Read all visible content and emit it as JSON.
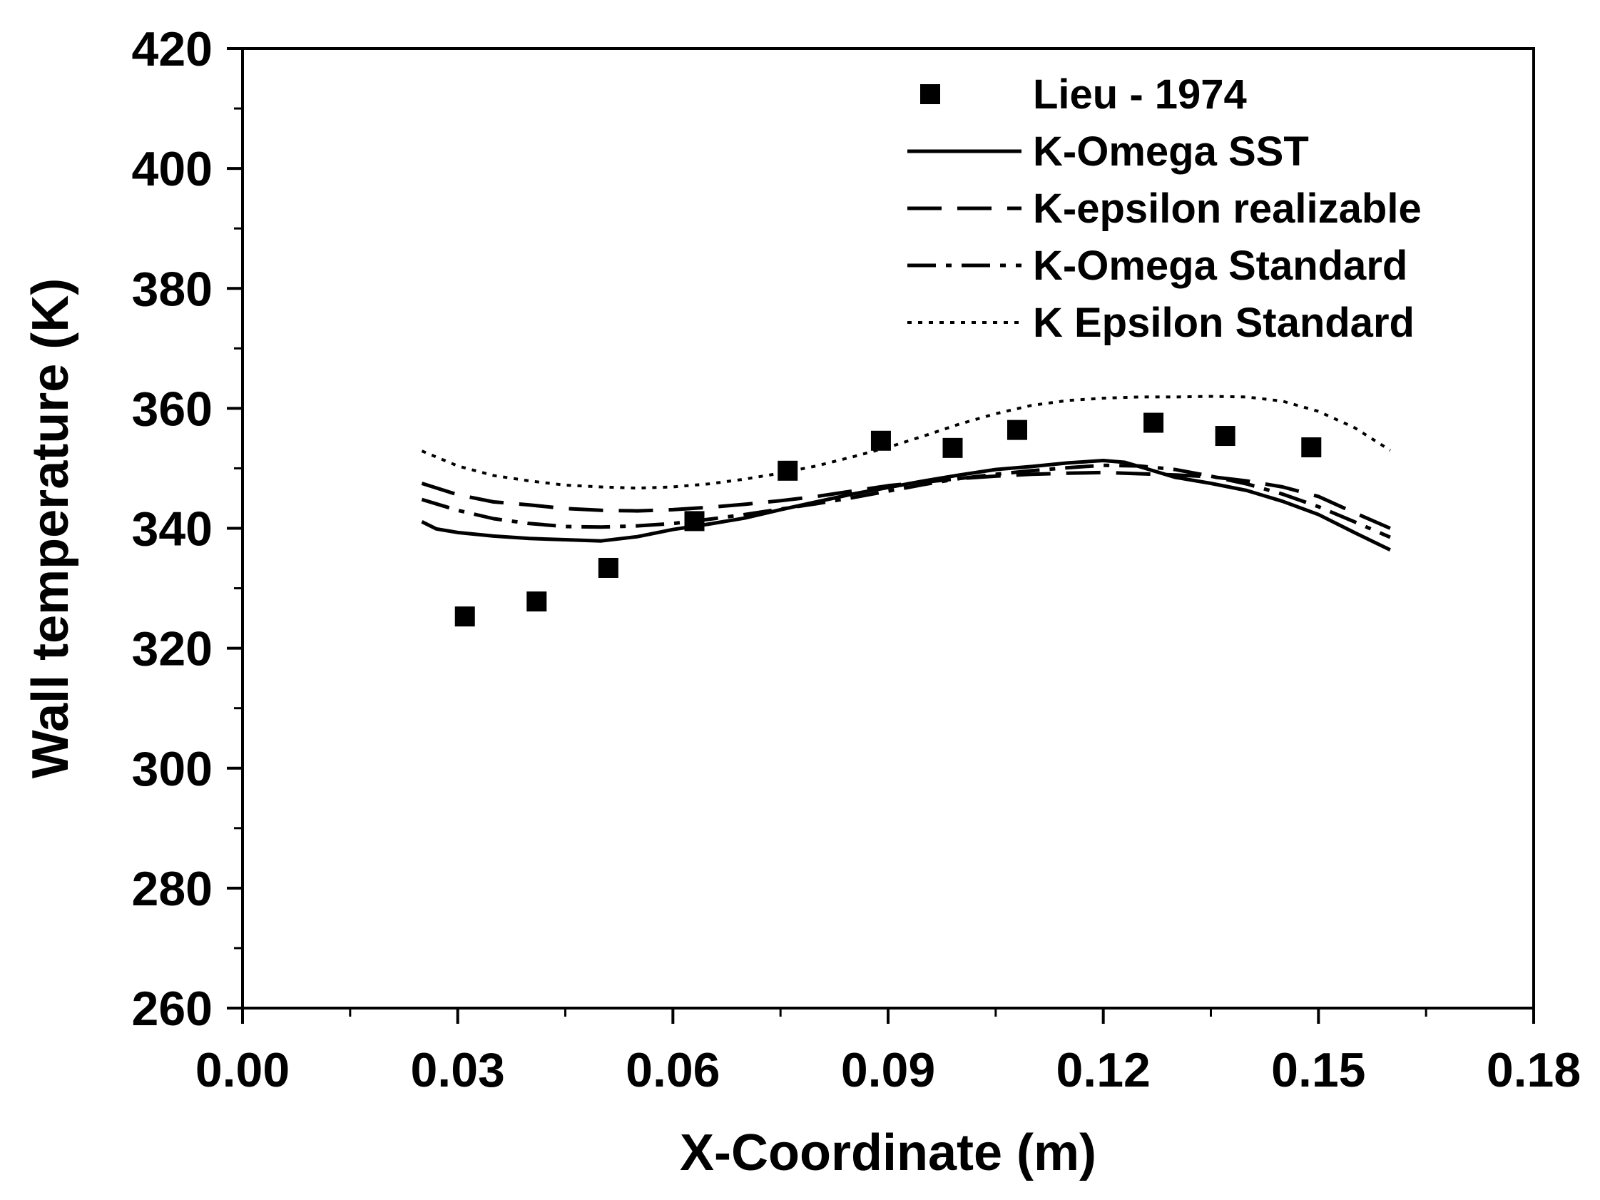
{
  "chart_data": {
    "type": "line",
    "title": "",
    "xlabel": "X-Coordinate (m)",
    "ylabel": "Wall temperature (K)",
    "xlim": [
      0.0,
      0.18
    ],
    "ylim": [
      260,
      420
    ],
    "xticks": [
      0.0,
      0.03,
      0.06,
      0.09,
      0.12,
      0.15,
      0.18
    ],
    "xtick_labels": [
      "0.00",
      "0.03",
      "0.06",
      "0.09",
      "0.12",
      "0.15",
      "0.18"
    ],
    "yticks": [
      260,
      280,
      300,
      320,
      340,
      360,
      380,
      400,
      420
    ],
    "ytick_labels": [
      "260",
      "280",
      "300",
      "320",
      "340",
      "360",
      "380",
      "400",
      "420"
    ],
    "grid": false,
    "legend_position": "top-right",
    "series": [
      {
        "name": "Lieu - 1974",
        "style": "square-markers",
        "x": [
          0.031,
          0.041,
          0.051,
          0.063,
          0.076,
          0.089,
          0.099,
          0.108,
          0.127,
          0.137,
          0.149
        ],
        "y": [
          325.3,
          327.8,
          333.4,
          341.2,
          349.6,
          354.6,
          353.4,
          356.4,
          357.6,
          355.4,
          353.5
        ]
      },
      {
        "name": "K-Omega SST",
        "style": "solid",
        "x": [
          0.025,
          0.027,
          0.03,
          0.035,
          0.04,
          0.045,
          0.05,
          0.055,
          0.06,
          0.065,
          0.07,
          0.075,
          0.08,
          0.085,
          0.09,
          0.095,
          0.1,
          0.105,
          0.11,
          0.115,
          0.12,
          0.123,
          0.125,
          0.13,
          0.135,
          0.14,
          0.145,
          0.15,
          0.155,
          0.16
        ],
        "y": [
          341.1,
          339.9,
          339.3,
          338.7,
          338.3,
          338.1,
          337.9,
          338.6,
          339.8,
          340.7,
          341.7,
          343.1,
          344.4,
          345.7,
          346.8,
          347.9,
          348.9,
          349.8,
          350.3,
          350.9,
          351.3,
          351.0,
          350.3,
          348.5,
          347.5,
          346.3,
          344.5,
          342.3,
          339.3,
          336.4
        ]
      },
      {
        "name": "K-epsilon realizable",
        "style": "long-dash",
        "x": [
          0.025,
          0.03,
          0.035,
          0.04,
          0.045,
          0.05,
          0.055,
          0.06,
          0.065,
          0.07,
          0.075,
          0.08,
          0.085,
          0.09,
          0.095,
          0.1,
          0.105,
          0.11,
          0.115,
          0.12,
          0.125,
          0.13,
          0.135,
          0.14,
          0.145,
          0.15,
          0.155,
          0.16
        ],
        "y": [
          347.5,
          345.6,
          344.4,
          343.9,
          343.3,
          343.0,
          342.9,
          343.1,
          343.5,
          344.0,
          344.6,
          345.3,
          346.2,
          347.1,
          347.7,
          348.3,
          348.7,
          349.0,
          349.2,
          349.3,
          349.1,
          348.9,
          348.6,
          347.9,
          346.9,
          345.3,
          342.6,
          340.0
        ]
      },
      {
        "name": "K-Omega Standard",
        "style": "dash-dot",
        "x": [
          0.025,
          0.03,
          0.035,
          0.04,
          0.045,
          0.05,
          0.055,
          0.06,
          0.065,
          0.07,
          0.075,
          0.08,
          0.085,
          0.09,
          0.095,
          0.1,
          0.105,
          0.11,
          0.115,
          0.12,
          0.125,
          0.13,
          0.135,
          0.14,
          0.145,
          0.15,
          0.155,
          0.16
        ],
        "y": [
          344.8,
          343.0,
          341.6,
          340.8,
          340.3,
          340.2,
          340.4,
          340.8,
          341.5,
          342.3,
          343.2,
          344.1,
          345.1,
          346.2,
          347.3,
          348.3,
          349.0,
          349.6,
          350.1,
          350.5,
          350.4,
          349.8,
          348.7,
          347.4,
          345.7,
          343.6,
          341.1,
          338.5
        ]
      },
      {
        "name": "K Epsilon Standard",
        "style": "dotted",
        "x": [
          0.025,
          0.03,
          0.035,
          0.04,
          0.045,
          0.05,
          0.055,
          0.06,
          0.065,
          0.07,
          0.075,
          0.08,
          0.085,
          0.09,
          0.095,
          0.1,
          0.105,
          0.11,
          0.115,
          0.12,
          0.125,
          0.13,
          0.135,
          0.14,
          0.145,
          0.15,
          0.155,
          0.16
        ],
        "y": [
          352.9,
          350.4,
          348.8,
          347.9,
          347.2,
          346.9,
          346.7,
          346.9,
          347.4,
          348.2,
          349.2,
          350.4,
          351.9,
          353.5,
          355.4,
          357.4,
          359.1,
          360.5,
          361.3,
          361.7,
          361.9,
          361.9,
          362.0,
          361.9,
          361.2,
          359.5,
          356.8,
          353.0
        ]
      }
    ]
  }
}
